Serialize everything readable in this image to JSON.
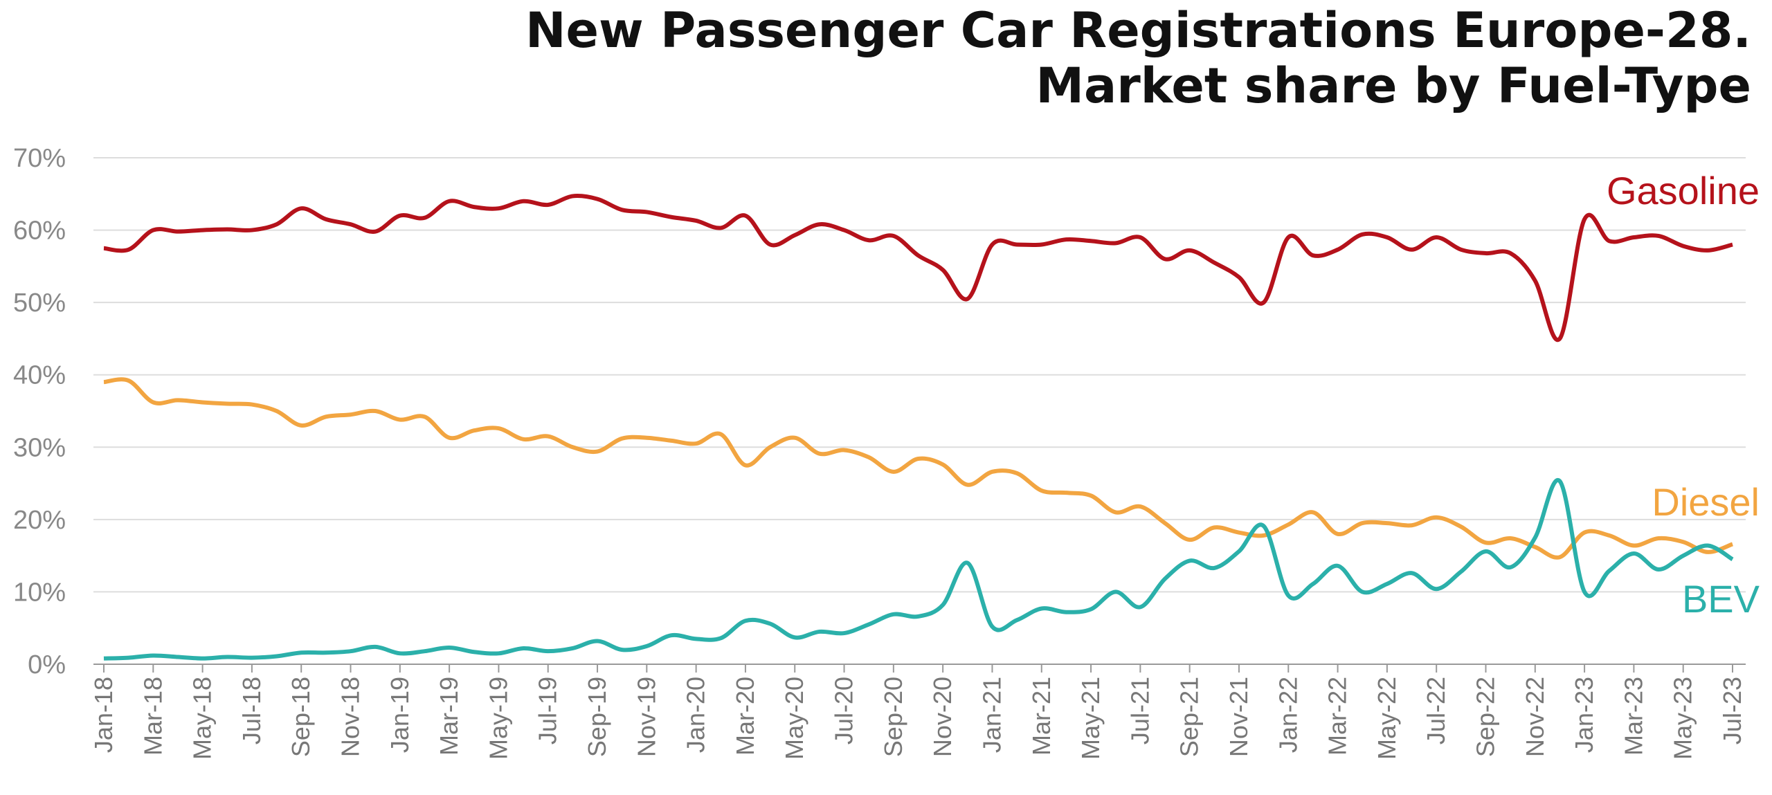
{
  "chart_data": {
    "type": "line",
    "title": "New Passenger Car Registrations Europe-28.",
    "subtitle": "Market share by Fuel-Type",
    "categories": [
      "Jan-18",
      null,
      "Mar-18",
      null,
      "May-18",
      null,
      "Jul-18",
      null,
      "Sep-18",
      null,
      "Nov-18",
      null,
      "Jan-19",
      null,
      "Mar-19",
      null,
      "May-19",
      null,
      "Jul-19",
      null,
      "Sep-19",
      null,
      "Nov-19",
      null,
      "Jan-20",
      null,
      "Mar-20",
      null,
      "May-20",
      null,
      "Jul-20",
      null,
      "Sep-20",
      null,
      "Nov-20",
      null,
      "Jan-21",
      null,
      "Mar-21",
      null,
      "May-21",
      null,
      "Jul-21",
      null,
      "Sep-21",
      null,
      "Nov-21",
      null,
      "Jan-22",
      null,
      "Mar-22",
      null,
      "May-22",
      null,
      "Jul-22",
      null,
      "Sep-22",
      null,
      "Nov-22",
      null,
      "Jan-23",
      null,
      "Mar-23",
      null,
      "May-23",
      null,
      "Jul-23"
    ],
    "series": [
      {
        "name": "Gasoline",
        "color": "#b5121b",
        "values": [
          57.5,
          57.3,
          60,
          59.8,
          60,
          60.1,
          60,
          60.8,
          63,
          61.5,
          60.8,
          59.8,
          62,
          61.7,
          64,
          63.2,
          63,
          64,
          63.5,
          64.7,
          64.3,
          62.8,
          62.5,
          61.8,
          61.3,
          60.3,
          62,
          58,
          59.3,
          60.8,
          60,
          58.6,
          59.2,
          56.5,
          54.5,
          50.5,
          58,
          58,
          58,
          58.7,
          58.5,
          58.2,
          59,
          56,
          57.2,
          55.5,
          53.5,
          50,
          59,
          56.5,
          57.3,
          59.4,
          59,
          57.3,
          59,
          57.3,
          56.8,
          56.8,
          53,
          45,
          61.5,
          58.5,
          59,
          59.2,
          57.8,
          57.2,
          58
        ]
      },
      {
        "name": "Diesel",
        "color": "#f2a541",
        "values": [
          39,
          39.2,
          36.2,
          36.5,
          36.2,
          36,
          35.9,
          35,
          33,
          34.2,
          34.5,
          35,
          33.8,
          34.2,
          31.3,
          32.3,
          32.6,
          31.1,
          31.5,
          30,
          29.4,
          31.2,
          31.3,
          30.9,
          30.5,
          31.8,
          27.5,
          30,
          31.3,
          29.1,
          29.6,
          28.6,
          26.6,
          28.4,
          27.6,
          24.8,
          26.6,
          26.4,
          24,
          23.7,
          23.3,
          21,
          21.8,
          19.5,
          17.2,
          18.9,
          18.2,
          17.8,
          19.3,
          21,
          18,
          19.5,
          19.5,
          19.2,
          20.3,
          19,
          16.8,
          17.4,
          16.2,
          14.8,
          18.2,
          17.8,
          16.4,
          17.4,
          16.9,
          15.5,
          16.6
        ]
      },
      {
        "name": "BEV",
        "color": "#2bb0aa",
        "values": [
          0.8,
          0.9,
          1.2,
          1,
          0.8,
          1,
          0.9,
          1.1,
          1.6,
          1.6,
          1.8,
          2.4,
          1.5,
          1.8,
          2.3,
          1.7,
          1.5,
          2.2,
          1.8,
          2.2,
          3.2,
          2,
          2.5,
          4,
          3.5,
          3.6,
          6,
          5.6,
          3.7,
          4.5,
          4.3,
          5.5,
          6.9,
          6.6,
          8.2,
          14,
          5.2,
          6.1,
          7.7,
          7.2,
          7.6,
          10,
          7.9,
          11.8,
          14.3,
          13.3,
          15.6,
          19.1,
          9.5,
          11.1,
          13.6,
          10,
          11.1,
          12.6,
          10.4,
          12.8,
          15.6,
          13.4,
          17.5,
          25.3,
          10,
          12.9,
          15.3,
          13.1,
          15,
          16.4,
          14.5
        ]
      }
    ],
    "ylim": [
      0,
      70
    ],
    "yticks": [
      {
        "value": 0,
        "label": "0%"
      },
      {
        "value": 10,
        "label": "10%"
      },
      {
        "value": 20,
        "label": "20%"
      },
      {
        "value": 30,
        "label": "30%"
      },
      {
        "value": 40,
        "label": "40%"
      },
      {
        "value": 50,
        "label": "50%"
      },
      {
        "value": 60,
        "label": "60%"
      },
      {
        "value": 70,
        "label": "70%"
      }
    ],
    "grid": true
  }
}
